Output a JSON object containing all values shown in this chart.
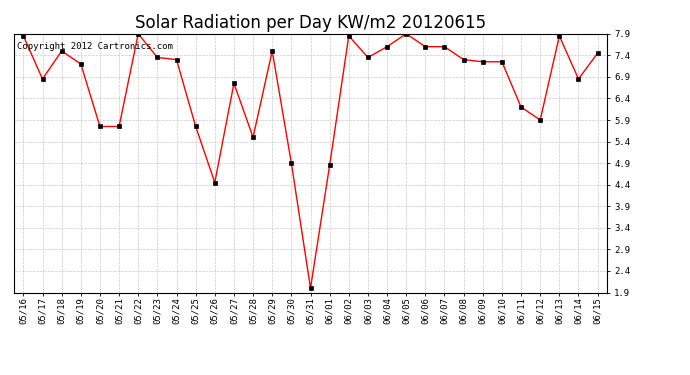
{
  "title": "Solar Radiation per Day KW/m2 20120615",
  "copyright_text": "Copyright 2012 Cartronics.com",
  "dates": [
    "05/16",
    "05/17",
    "05/18",
    "05/19",
    "05/20",
    "05/21",
    "05/22",
    "05/23",
    "05/24",
    "05/25",
    "05/26",
    "05/27",
    "05/28",
    "05/29",
    "05/30",
    "05/31",
    "06/01",
    "06/02",
    "06/03",
    "06/04",
    "06/05",
    "06/06",
    "06/07",
    "06/08",
    "06/09",
    "06/10",
    "06/11",
    "06/12",
    "06/13",
    "06/14",
    "06/15"
  ],
  "values": [
    7.85,
    6.85,
    7.5,
    7.2,
    5.75,
    5.75,
    7.9,
    7.35,
    7.3,
    5.75,
    4.45,
    6.75,
    5.5,
    7.5,
    4.9,
    2.0,
    4.85,
    7.85,
    7.35,
    7.6,
    7.9,
    7.6,
    7.6,
    7.3,
    7.25,
    7.25,
    6.2,
    5.9,
    7.85,
    6.85,
    7.45
  ],
  "line_color": "#ff0000",
  "marker_color": "#000000",
  "bg_color": "#ffffff",
  "grid_color": "#bbbbbb",
  "ylim_min": 1.9,
  "ylim_max": 7.9,
  "yticks": [
    1.9,
    2.4,
    2.9,
    3.4,
    3.9,
    4.4,
    4.9,
    5.4,
    5.9,
    6.4,
    6.9,
    7.4,
    7.9
  ],
  "title_fontsize": 12,
  "tick_fontsize": 6.5,
  "copyright_fontsize": 6.5
}
